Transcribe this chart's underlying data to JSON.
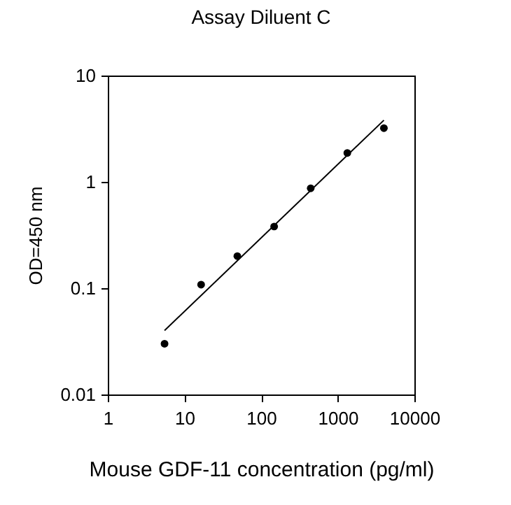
{
  "chart_data": {
    "type": "scatter",
    "title": "Assay Diluent C",
    "xlabel": "Mouse GDF-11 concentration (pg/ml)",
    "ylabel": "OD=450 nm",
    "log": "xy",
    "grid": false,
    "xlim": [
      1,
      10000
    ],
    "xticks": [
      1,
      10,
      100,
      1000,
      10000
    ],
    "ylim": [
      0.01,
      10
    ],
    "yticks": [
      0.01,
      0.1,
      1,
      10
    ],
    "series": [
      {
        "marker": "circle",
        "color": "#000000",
        "x": [
          5.5,
          16.5,
          49,
          148,
          444,
          1333,
          4000
        ],
        "values": [
          0.03,
          0.108,
          0.2,
          0.38,
          0.87,
          1.87,
          3.2
        ]
      },
      {
        "type": "line",
        "marker": "none",
        "line_style": "solid",
        "color": "#000000",
        "x": [
          5.5,
          4000
        ],
        "values": [
          0.04,
          3.8
        ]
      }
    ]
  }
}
